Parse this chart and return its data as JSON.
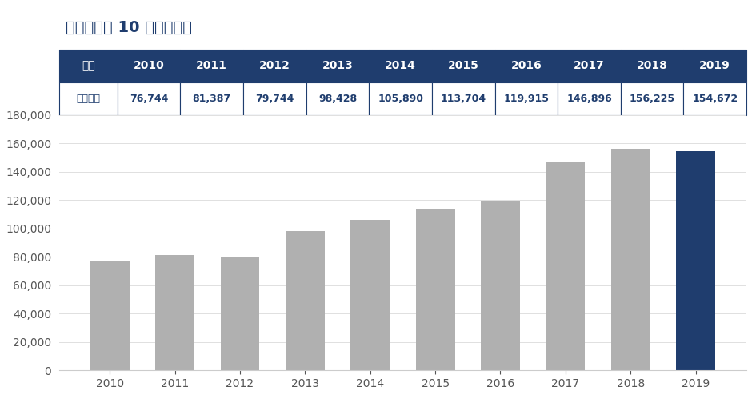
{
  "title": "【志願者数 10 年間推移】",
  "years": [
    2010,
    2011,
    2012,
    2013,
    2014,
    2015,
    2016,
    2017,
    2018,
    2019
  ],
  "values": [
    76744,
    81387,
    79744,
    98428,
    105890,
    113704,
    119915,
    146896,
    156225,
    154672
  ],
  "bar_colors": [
    "#b0b0b0",
    "#b0b0b0",
    "#b0b0b0",
    "#b0b0b0",
    "#b0b0b0",
    "#b0b0b0",
    "#b0b0b0",
    "#b0b0b0",
    "#b0b0b0",
    "#1f3d6e"
  ],
  "table_header_bg": "#1f3d6e",
  "table_header_color": "#ffffff",
  "table_row_label_color": "#1f3d6e",
  "table_value_color": "#1f3d6e",
  "table_border_color": "#1f3d6e",
  "ylim": [
    0,
    180000
  ],
  "yticks": [
    0,
    20000,
    40000,
    60000,
    80000,
    100000,
    120000,
    140000,
    160000,
    180000
  ],
  "bg_color": "#ffffff",
  "title_color": "#1f3d6e",
  "title_fontsize": 14,
  "axis_label_fontsize": 10,
  "table_header_fontsize": 10,
  "table_value_fontsize": 9,
  "row_labels": [
    "年度",
    "志願者数"
  ],
  "header_label": "年度"
}
